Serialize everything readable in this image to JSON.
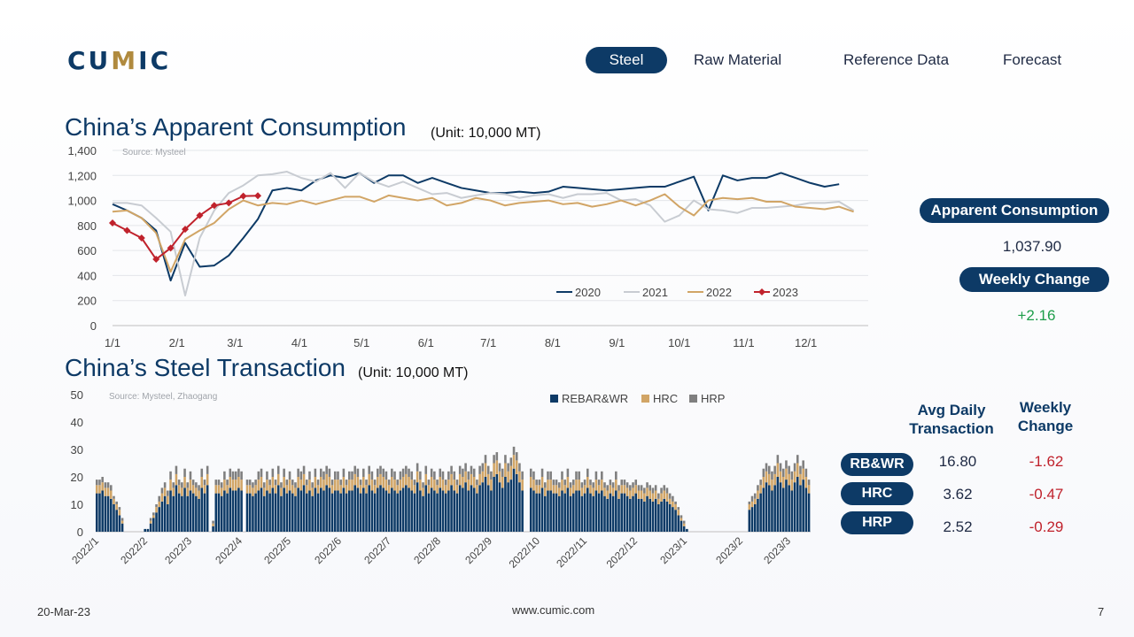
{
  "logo": {
    "text_pre": "CU",
    "text_mid": "M",
    "text_post": "IC"
  },
  "nav": [
    {
      "label": "Steel",
      "active": true
    },
    {
      "label": "Raw Material",
      "active": false
    },
    {
      "label": "Reference Data",
      "active": false
    },
    {
      "label": "Forecast",
      "active": false
    }
  ],
  "consumption": {
    "title": "China’s Apparent Consumption",
    "unit": "(Unit: 10,000 MT)",
    "source": "Source: Mysteel",
    "side_label": "Apparent Consumption",
    "side_value": "1,037.90",
    "change_label": "Weekly Change",
    "change_value": "+2.16"
  },
  "transaction": {
    "title": "China’s Steel Transaction",
    "unit": "(Unit: 10,000 MT)",
    "source": "Source: Mysteel, Zhaogang",
    "col_avg": "Avg Daily Transaction",
    "col_change": "Weekly Change",
    "rows": [
      {
        "label": "RB&WR",
        "avg": "16.80",
        "change": "-1.62"
      },
      {
        "label": "HRC",
        "avg": "3.62",
        "change": "-0.47"
      },
      {
        "label": "HRP",
        "avg": "2.52",
        "change": "-0.29"
      }
    ]
  },
  "footer": {
    "date": "20-Mar-23",
    "url": "www.cumic.com",
    "page": "7"
  },
  "colors": {
    "navy": "#0d3a66",
    "gold": "#d1a566",
    "grey": "#7f7f7f",
    "c2021": "#c8ccd2",
    "c2023": "#c0222c",
    "accent_gold": "#b08a3e"
  },
  "chart_data": [
    {
      "type": "line",
      "ylim": [
        0,
        1400
      ],
      "yticks": [
        "0",
        "200",
        "400",
        "600",
        "800",
        "1,000",
        "1,200",
        "1,400"
      ],
      "xlim": [
        0,
        52
      ],
      "xticks": [
        {
          "label": "1/1",
          "x": 0
        },
        {
          "label": "2/1",
          "x": 4.43
        },
        {
          "label": "3/1",
          "x": 8.43
        },
        {
          "label": "4/1",
          "x": 12.86
        },
        {
          "label": "5/1",
          "x": 17.14
        },
        {
          "label": "6/1",
          "x": 21.57
        },
        {
          "label": "7/1",
          "x": 25.86
        },
        {
          "label": "8/1",
          "x": 30.29
        },
        {
          "label": "9/1",
          "x": 34.71
        },
        {
          "label": "10/1",
          "x": 39
        },
        {
          "label": "11/1",
          "x": 43.43
        },
        {
          "label": "12/1",
          "x": 47.71
        }
      ],
      "grid": true,
      "legend_position": "bottom-right",
      "series": [
        {
          "name": "2020",
          "color": "#0d3a66",
          "marker": false,
          "values": [
            970,
            920,
            860,
            760,
            360,
            660,
            470,
            480,
            560,
            700,
            850,
            1080,
            1100,
            1080,
            1160,
            1200,
            1180,
            1220,
            1140,
            1200,
            1200,
            1140,
            1180,
            1140,
            1100,
            1080,
            1060,
            1060,
            1070,
            1060,
            1070,
            1110,
            1100,
            1090,
            1080,
            1090,
            1100,
            1110,
            1110,
            1150,
            1190,
            920,
            1200,
            1160,
            1180,
            1180,
            1220,
            1180,
            1140,
            1110,
            1130
          ]
        },
        {
          "name": "2021",
          "color": "#c8ccd2",
          "marker": false,
          "values": [
            980,
            980,
            960,
            860,
            750,
            240,
            700,
            920,
            1060,
            1120,
            1200,
            1210,
            1230,
            1180,
            1150,
            1220,
            1100,
            1220,
            1150,
            1110,
            1150,
            1100,
            1050,
            1060,
            1020,
            1040,
            1060,
            1050,
            1020,
            1040,
            1050,
            1020,
            1050,
            1050,
            1060,
            1000,
            1010,
            960,
            830,
            880,
            1000,
            930,
            920,
            900,
            940,
            940,
            950,
            960,
            980,
            980,
            990,
            920
          ]
        },
        {
          "name": "2022",
          "color": "#d1a566",
          "marker": false,
          "values": [
            910,
            920,
            860,
            740,
            430,
            690,
            760,
            820,
            930,
            1000,
            960,
            980,
            970,
            1000,
            970,
            1000,
            1030,
            1030,
            990,
            1040,
            1020,
            1000,
            1020,
            960,
            980,
            1020,
            1000,
            960,
            980,
            990,
            1000,
            970,
            980,
            950,
            970,
            1000,
            960,
            1000,
            1050,
            950,
            880,
            1000,
            1020,
            1010,
            1020,
            990,
            990,
            950,
            940,
            930,
            950,
            910
          ]
        },
        {
          "name": "2023",
          "color": "#c0222c",
          "marker": true,
          "values": [
            820,
            760,
            700,
            530,
            620,
            770,
            880,
            960,
            980,
            1035,
            1038
          ]
        }
      ]
    },
    {
      "type": "bar",
      "stacked": true,
      "ylim": [
        0,
        50
      ],
      "yticks": [
        "0",
        "10",
        "20",
        "30",
        "40",
        "50"
      ],
      "categories": [
        "2022/1",
        "2022/2",
        "2022/3",
        "2022/4",
        "2022/5",
        "2022/6",
        "2022/7",
        "2022/8",
        "2022/9",
        "2022/10",
        "2022/11",
        "2022/12",
        "2023/1",
        "2023/2",
        "2023/3"
      ],
      "legend_position": "top-center",
      "series_names": [
        "REBAR&WR",
        "HRC",
        "HRP"
      ],
      "series_colors": [
        "#0d3a66",
        "#d1a566",
        "#7f7f7f"
      ],
      "daily_rebar": [
        14,
        14,
        15,
        13,
        13,
        12,
        10,
        8,
        6,
        3,
        0,
        0,
        0,
        0,
        0,
        0,
        0,
        1,
        1,
        3,
        5,
        7,
        9,
        11,
        13,
        10,
        15,
        13,
        17,
        14,
        13,
        16,
        13,
        15,
        14,
        13,
        12,
        16,
        14,
        17,
        0,
        2,
        14,
        14,
        13,
        15,
        14,
        16,
        15,
        15,
        16,
        15,
        0,
        14,
        14,
        13,
        14,
        15,
        16,
        13,
        15,
        14,
        16,
        14,
        17,
        13,
        16,
        14,
        15,
        14,
        13,
        16,
        15,
        17,
        14,
        15,
        13,
        16,
        14,
        16,
        15,
        17,
        16,
        14,
        15,
        15,
        14,
        16,
        14,
        15,
        15,
        17,
        16,
        14,
        16,
        14,
        17,
        15,
        14,
        16,
        17,
        16,
        15,
        14,
        16,
        15,
        14,
        15,
        16,
        17,
        16,
        15,
        14,
        18,
        15,
        13,
        17,
        14,
        16,
        15,
        14,
        16,
        15,
        14,
        15,
        17,
        15,
        14,
        17,
        16,
        18,
        15,
        17,
        16,
        14,
        17,
        18,
        20,
        17,
        15,
        20,
        21,
        18,
        16,
        20,
        18,
        19,
        23,
        21,
        18,
        15,
        0,
        0,
        16,
        15,
        14,
        14,
        16,
        13,
        15,
        15,
        14,
        14,
        13,
        15,
        14,
        16,
        13,
        14,
        15,
        15,
        13,
        14,
        16,
        14,
        13,
        15,
        14,
        15,
        13,
        12,
        14,
        13,
        15,
        12,
        14,
        14,
        13,
        12,
        13,
        14,
        12,
        12,
        11,
        13,
        12,
        11,
        12,
        10,
        11,
        12,
        11,
        10,
        9,
        8,
        6,
        4,
        2,
        1,
        0,
        0,
        0,
        0,
        0,
        0,
        0,
        0,
        0,
        0,
        0,
        0,
        0,
        0,
        0,
        0,
        0,
        0,
        0,
        0,
        0,
        8,
        9,
        10,
        12,
        14,
        16,
        18,
        17,
        15,
        17,
        20,
        18,
        16,
        19,
        17,
        15,
        18,
        20,
        17,
        19,
        16,
        14
      ],
      "daily_hrc": [
        3,
        3,
        3,
        3,
        3,
        3,
        2,
        2,
        2,
        1,
        0,
        0,
        0,
        0,
        0,
        0,
        0,
        0,
        0,
        1,
        1,
        2,
        2,
        3,
        3,
        3,
        4,
        3,
        4,
        3,
        3,
        4,
        3,
        4,
        3,
        3,
        3,
        4,
        3,
        4,
        0,
        1,
        3,
        3,
        3,
        4,
        3,
        4,
        4,
        4,
        4,
        4,
        0,
        3,
        3,
        3,
        3,
        4,
        4,
        3,
        4,
        3,
        4,
        3,
        4,
        3,
        4,
        3,
        4,
        3,
        3,
        4,
        4,
        4,
        3,
        4,
        3,
        4,
        3,
        4,
        4,
        4,
        4,
        3,
        4,
        4,
        3,
        4,
        3,
        4,
        4,
        4,
        4,
        3,
        4,
        3,
        4,
        4,
        3,
        4,
        4,
        4,
        4,
        3,
        4,
        4,
        3,
        4,
        4,
        4,
        4,
        4,
        3,
        4,
        4,
        3,
        4,
        3,
        4,
        4,
        3,
        4,
        4,
        3,
        4,
        4,
        4,
        3,
        4,
        4,
        4,
        4,
        4,
        4,
        3,
        4,
        4,
        5,
        4,
        4,
        5,
        5,
        4,
        4,
        5,
        4,
        5,
        5,
        5,
        4,
        4,
        0,
        0,
        4,
        4,
        3,
        3,
        4,
        3,
        4,
        4,
        3,
        3,
        3,
        4,
        3,
        4,
        3,
        3,
        4,
        4,
        3,
        3,
        4,
        3,
        3,
        4,
        3,
        4,
        3,
        3,
        3,
        3,
        4,
        3,
        3,
        3,
        3,
        3,
        3,
        3,
        3,
        3,
        3,
        3,
        3,
        3,
        3,
        2,
        3,
        3,
        3,
        2,
        2,
        2,
        2,
        1,
        1,
        0,
        0,
        0,
        0,
        0,
        0,
        0,
        0,
        0,
        0,
        0,
        0,
        0,
        0,
        0,
        0,
        0,
        0,
        0,
        0,
        0,
        0,
        2,
        2,
        2,
        3,
        3,
        4,
        4,
        4,
        4,
        4,
        5,
        4,
        4,
        4,
        4,
        4,
        4,
        5,
        4,
        4,
        4,
        3
      ],
      "daily_hrp": [
        2,
        2,
        2,
        2,
        2,
        2,
        1,
        1,
        1,
        1,
        0,
        0,
        0,
        0,
        0,
        0,
        0,
        0,
        0,
        1,
        1,
        1,
        2,
        2,
        2,
        2,
        3,
        2,
        3,
        2,
        2,
        3,
        2,
        3,
        2,
        2,
        2,
        3,
        2,
        3,
        0,
        1,
        2,
        2,
        2,
        3,
        2,
        3,
        3,
        3,
        3,
        3,
        0,
        2,
        2,
        2,
        2,
        3,
        3,
        2,
        3,
        2,
        3,
        2,
        3,
        2,
        3,
        2,
        3,
        2,
        2,
        3,
        3,
        3,
        2,
        3,
        2,
        3,
        2,
        3,
        3,
        3,
        3,
        2,
        3,
        3,
        2,
        3,
        2,
        3,
        3,
        3,
        3,
        2,
        3,
        2,
        3,
        3,
        2,
        3,
        3,
        3,
        3,
        2,
        3,
        3,
        2,
        3,
        3,
        3,
        3,
        3,
        2,
        3,
        3,
        2,
        3,
        2,
        3,
        3,
        2,
        3,
        3,
        2,
        3,
        3,
        3,
        2,
        3,
        3,
        3,
        3,
        3,
        3,
        2,
        3,
        3,
        3,
        3,
        3,
        3,
        3,
        3,
        3,
        3,
        3,
        3,
        3,
        3,
        3,
        3,
        0,
        0,
        3,
        3,
        2,
        2,
        3,
        2,
        3,
        3,
        2,
        2,
        2,
        3,
        2,
        3,
        2,
        2,
        3,
        3,
        2,
        2,
        3,
        2,
        2,
        3,
        2,
        3,
        2,
        2,
        2,
        2,
        3,
        2,
        2,
        2,
        2,
        2,
        2,
        2,
        2,
        2,
        2,
        2,
        2,
        2,
        2,
        2,
        2,
        2,
        2,
        2,
        2,
        1,
        1,
        1,
        1,
        0,
        0,
        0,
        0,
        0,
        0,
        0,
        0,
        0,
        0,
        0,
        0,
        0,
        0,
        0,
        0,
        0,
        0,
        0,
        0,
        0,
        0,
        1,
        2,
        2,
        2,
        2,
        3,
        3,
        3,
        3,
        3,
        3,
        3,
        3,
        3,
        3,
        3,
        3,
        3,
        3,
        3,
        3,
        2
      ]
    }
  ]
}
